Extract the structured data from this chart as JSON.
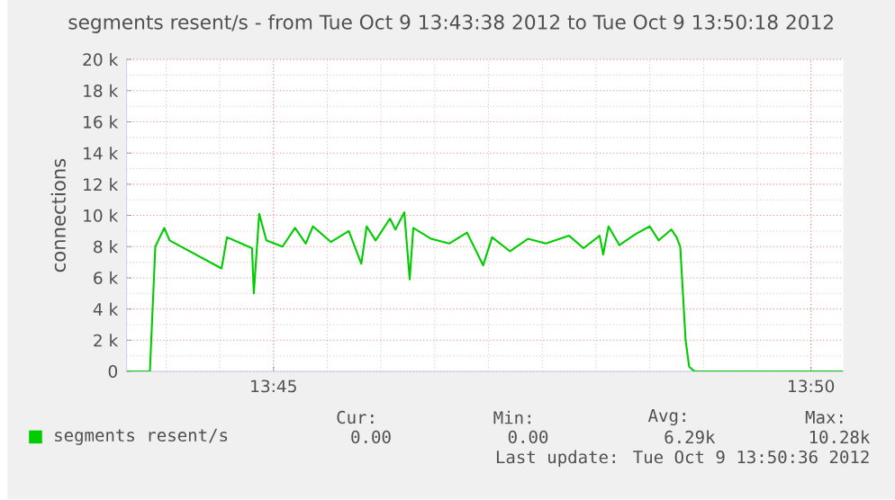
{
  "chart_data": {
    "type": "line",
    "title": "segments resent/s - from Tue Oct  9 13:43:38 2012 to Tue Oct  9 13:50:18 2012",
    "ylabel": "connections",
    "x": [
      13.72722,
      13.73083,
      13.73167,
      13.73306,
      13.73389,
      13.74194,
      13.74278,
      13.74667,
      13.74694,
      13.74778,
      13.74889,
      13.75139,
      13.75333,
      13.755,
      13.75611,
      13.75889,
      13.76167,
      13.76361,
      13.76444,
      13.76583,
      13.76806,
      13.76889,
      13.77028,
      13.77111,
      13.77167,
      13.77444,
      13.77722,
      13.78,
      13.7825,
      13.78389,
      13.78667,
      13.78944,
      13.79222,
      13.79583,
      13.79806,
      13.80056,
      13.80111,
      13.80194,
      13.80361,
      13.80611,
      13.80833,
      13.80972,
      13.81167,
      13.8125,
      13.81306,
      13.81389,
      13.81444,
      13.81528,
      13.83833
    ],
    "series": [
      {
        "name": "segments resent/s",
        "color": "#00cc00",
        "values": [
          0,
          0,
          8000,
          9200,
          8400,
          6600,
          8600,
          7900,
          5000,
          10100,
          8400,
          8000,
          9200,
          8200,
          9300,
          8300,
          9000,
          6900,
          9300,
          8400,
          9800,
          9100,
          10200,
          5900,
          9200,
          8500,
          8200,
          8900,
          6800,
          8600,
          7700,
          8500,
          8200,
          8700,
          7900,
          8700,
          7500,
          9300,
          8100,
          8800,
          9300,
          8400,
          9100,
          8600,
          8000,
          2000,
          300,
          0,
          0
        ]
      }
    ],
    "xlim": [
      13.72722,
      13.83833
    ],
    "xticks": [
      {
        "value": 13.75,
        "label": "13:45"
      },
      {
        "value": 13.83333,
        "label": "13:50"
      }
    ],
    "ylim": [
      0,
      20000
    ],
    "yticks": [
      {
        "value": 0,
        "label": "0"
      },
      {
        "value": 2000,
        "label": "2 k"
      },
      {
        "value": 4000,
        "label": "4 k"
      },
      {
        "value": 6000,
        "label": "6 k"
      },
      {
        "value": 8000,
        "label": "8 k"
      },
      {
        "value": 10000,
        "label": "10 k"
      },
      {
        "value": 12000,
        "label": "12 k"
      },
      {
        "value": 14000,
        "label": "14 k"
      },
      {
        "value": 16000,
        "label": "16 k"
      },
      {
        "value": 18000,
        "label": "18 k"
      },
      {
        "value": 20000,
        "label": "20 k"
      }
    ],
    "grid": true,
    "legend": "bottom",
    "annotations": [
      "Cur:",
      "Min:",
      "Avg:",
      "Max:",
      "0.00",
      "0.00",
      "6.29k",
      "10.28k",
      "Last update:  Tue Oct  9 13:50:36 2012"
    ]
  }
}
